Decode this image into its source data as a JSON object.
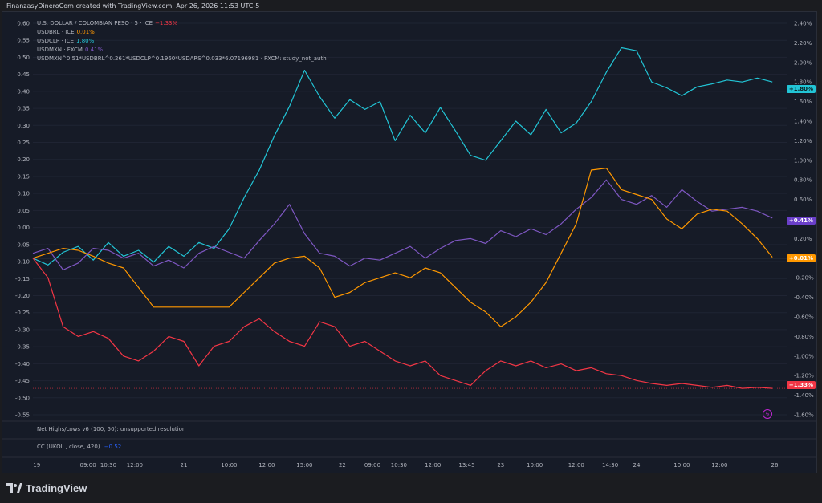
{
  "header": {
    "credit": "FinanzasyDineroCom created with TradingView.com, Apr 26, 2026 11:53 UTC-5"
  },
  "legend": [
    {
      "label": "U.S. DOLLAR / COLOMBIAN PESO · 5 · ICE",
      "value": "−1.33%",
      "color": "#f23645"
    },
    {
      "label": "USDBRL · ICE",
      "value": "0.01%",
      "color": "#ff9800"
    },
    {
      "label": "USDCLP · ICE",
      "value": "1.80%",
      "color": "#22c5d6"
    },
    {
      "label": "USDMXN · FXCM",
      "value": "0.41%",
      "color": "#7e57c2"
    },
    {
      "label": "USDMXN^0.51*USDBRL^0.261*USDCLP^0.1960*USDARS^0.033*6.07196981 · FXCM: study_not_auth",
      "value": "",
      "color": "#b2b5be"
    }
  ],
  "panes": {
    "highs_lows": "Net Highs/Lows v6 (100, 50): unsupported resolution",
    "cc_label": "CC (UKOIL, close, 420)",
    "cc_value": "−0.52"
  },
  "badges": {
    "clp": "+1.80%",
    "mxn": "+0.41%",
    "brl": "+0.01%",
    "cop": "−1.33%"
  },
  "alert_icon": "lightning-icon",
  "brand": {
    "name": "TradingView"
  },
  "chart_data": {
    "type": "line",
    "left_axis": {
      "ticks": [
        "0.60",
        "0.55",
        "0.50",
        "0.45",
        "0.40",
        "0.35",
        "0.30",
        "0.25",
        "0.20",
        "0.15",
        "0.10",
        "0.05",
        "0.00",
        "-0.05",
        "-0.10",
        "-0.15",
        "-0.20",
        "-0.25",
        "-0.30",
        "-0.35",
        "-0.40",
        "-0.45",
        "-0.50",
        "-0.55"
      ],
      "range": [
        -0.55,
        0.6
      ]
    },
    "right_axis": {
      "ticks": [
        "2.40%",
        "2.20%",
        "2.00%",
        "1.80%",
        "1.60%",
        "1.40%",
        "1.20%",
        "1.00%",
        "0.80%",
        "0.60%",
        "0.40%",
        "0.20%",
        "0.00%",
        "-0.20%",
        "-0.40%",
        "-0.60%",
        "-0.80%",
        "-1.00%",
        "-1.20%",
        "-1.40%",
        "-1.60%"
      ],
      "range": [
        -1.6,
        2.4
      ]
    },
    "x_ticks": [
      "19",
      "09:00",
      "10:30",
      "12:00",
      "21",
      "10:00",
      "12:00",
      "15:00",
      "22",
      "09:00",
      "10:30",
      "12:00",
      "13:45",
      "23",
      "10:00",
      "12:00",
      "14:30",
      "24",
      "10:00",
      "12:00",
      "26"
    ],
    "x_tick_numbers": [
      0.5,
      7.3,
      10,
      13.5,
      20,
      26,
      31,
      36,
      41,
      45,
      48.5,
      53,
      57.5,
      62,
      66.5,
      72,
      76.5,
      80,
      86,
      91,
      98.3
    ],
    "x_range": [
      0,
      100
    ],
    "series": [
      {
        "name": "USDCLP · ICE",
        "color": "#22c5d6",
        "y_axis": "right",
        "last": 1.8,
        "x": [
          0,
          2,
          4,
          6,
          8,
          10,
          12,
          14,
          16,
          18,
          20,
          22,
          24,
          26,
          28,
          30,
          32,
          34,
          36,
          38,
          40,
          42,
          44,
          46,
          48,
          50,
          52,
          54,
          56,
          58,
          60,
          62,
          64,
          66,
          68,
          70,
          72,
          74,
          76,
          78,
          80,
          82,
          84,
          86,
          88,
          90,
          92,
          94,
          96,
          98
        ],
        "y": [
          0.0,
          -0.07,
          0.06,
          0.12,
          -0.02,
          0.16,
          0.02,
          0.08,
          -0.04,
          0.12,
          0.02,
          0.16,
          0.1,
          0.3,
          0.62,
          0.9,
          1.25,
          1.55,
          1.92,
          1.65,
          1.43,
          1.62,
          1.52,
          1.6,
          1.2,
          1.46,
          1.28,
          1.54,
          1.3,
          1.05,
          1.0,
          1.2,
          1.4,
          1.26,
          1.52,
          1.28,
          1.38,
          1.6,
          1.9,
          2.15,
          2.12,
          1.8,
          1.74,
          1.66,
          1.75,
          1.78,
          1.82,
          1.8,
          1.84,
          1.8
        ]
      },
      {
        "name": "USDMXN · FXCM",
        "color": "#7e57c2",
        "y_axis": "right",
        "last": 0.41,
        "x": [
          0,
          2,
          4,
          6,
          8,
          10,
          12,
          14,
          16,
          18,
          20,
          22,
          24,
          26,
          28,
          30,
          32,
          34,
          36,
          38,
          40,
          42,
          44,
          46,
          48,
          50,
          52,
          54,
          56,
          58,
          60,
          62,
          64,
          66,
          68,
          70,
          72,
          74,
          76,
          78,
          80,
          82,
          84,
          86,
          88,
          90,
          92,
          94,
          96,
          98
        ],
        "y": [
          0.05,
          0.1,
          -0.12,
          -0.05,
          0.1,
          0.08,
          0.0,
          0.05,
          -0.08,
          -0.02,
          -0.1,
          0.05,
          0.12,
          0.06,
          0.0,
          0.18,
          0.35,
          0.55,
          0.25,
          0.05,
          0.02,
          -0.08,
          0.0,
          -0.02,
          0.05,
          0.12,
          0.0,
          0.1,
          0.18,
          0.2,
          0.15,
          0.28,
          0.22,
          0.3,
          0.24,
          0.35,
          0.5,
          0.62,
          0.8,
          0.6,
          0.55,
          0.64,
          0.52,
          0.7,
          0.58,
          0.48,
          0.5,
          0.52,
          0.48,
          0.41
        ]
      },
      {
        "name": "USDBRL · ICE",
        "color": "#ff9800",
        "y_axis": "right",
        "last": 0.01,
        "x": [
          0,
          2,
          4,
          6,
          8,
          10,
          12,
          14,
          16,
          18,
          20,
          22,
          24,
          26,
          28,
          30,
          32,
          34,
          36,
          38,
          40,
          42,
          44,
          46,
          48,
          50,
          52,
          54,
          56,
          58,
          60,
          62,
          64,
          66,
          68,
          70,
          72,
          74,
          76,
          78,
          80,
          82,
          84,
          86,
          88,
          90,
          92,
          94,
          96,
          98
        ],
        "y": [
          0.0,
          0.05,
          0.1,
          0.08,
          0.02,
          -0.05,
          -0.1,
          -0.3,
          -0.5,
          -0.5,
          -0.5,
          -0.5,
          -0.5,
          -0.5,
          -0.35,
          -0.2,
          -0.05,
          0.0,
          0.02,
          -0.1,
          -0.4,
          -0.35,
          -0.25,
          -0.2,
          -0.15,
          -0.2,
          -0.1,
          -0.15,
          -0.3,
          -0.45,
          -0.55,
          -0.7,
          -0.6,
          -0.45,
          -0.25,
          0.05,
          0.35,
          0.9,
          0.92,
          0.7,
          0.65,
          0.6,
          0.4,
          0.3,
          0.45,
          0.5,
          0.48,
          0.35,
          0.2,
          0.01
        ]
      },
      {
        "name": "U.S. DOLLAR / COLOMBIAN PESO",
        "color": "#f23645",
        "y_axis": "right",
        "last": -1.33,
        "x": [
          0,
          2,
          4,
          6,
          8,
          10,
          12,
          14,
          16,
          18,
          20,
          22,
          24,
          26,
          28,
          30,
          32,
          34,
          36,
          38,
          40,
          42,
          44,
          46,
          48,
          50,
          52,
          54,
          56,
          58,
          60,
          62,
          64,
          66,
          68,
          70,
          72,
          74,
          76,
          78,
          80,
          82,
          84,
          86,
          88,
          90,
          92,
          94,
          96,
          98
        ],
        "y": [
          0.0,
          -0.2,
          -0.7,
          -0.8,
          -0.75,
          -0.82,
          -1.0,
          -1.05,
          -0.95,
          -0.8,
          -0.85,
          -1.1,
          -0.9,
          -0.85,
          -0.7,
          -0.62,
          -0.75,
          -0.85,
          -0.9,
          -0.65,
          -0.7,
          -0.9,
          -0.85,
          -0.95,
          -1.05,
          -1.1,
          -1.05,
          -1.2,
          -1.25,
          -1.3,
          -1.15,
          -1.05,
          -1.1,
          -1.05,
          -1.12,
          -1.08,
          -1.15,
          -1.12,
          -1.18,
          -1.2,
          -1.25,
          -1.28,
          -1.3,
          -1.28,
          -1.3,
          -1.32,
          -1.3,
          -1.33,
          -1.32,
          -1.33
        ]
      }
    ]
  }
}
